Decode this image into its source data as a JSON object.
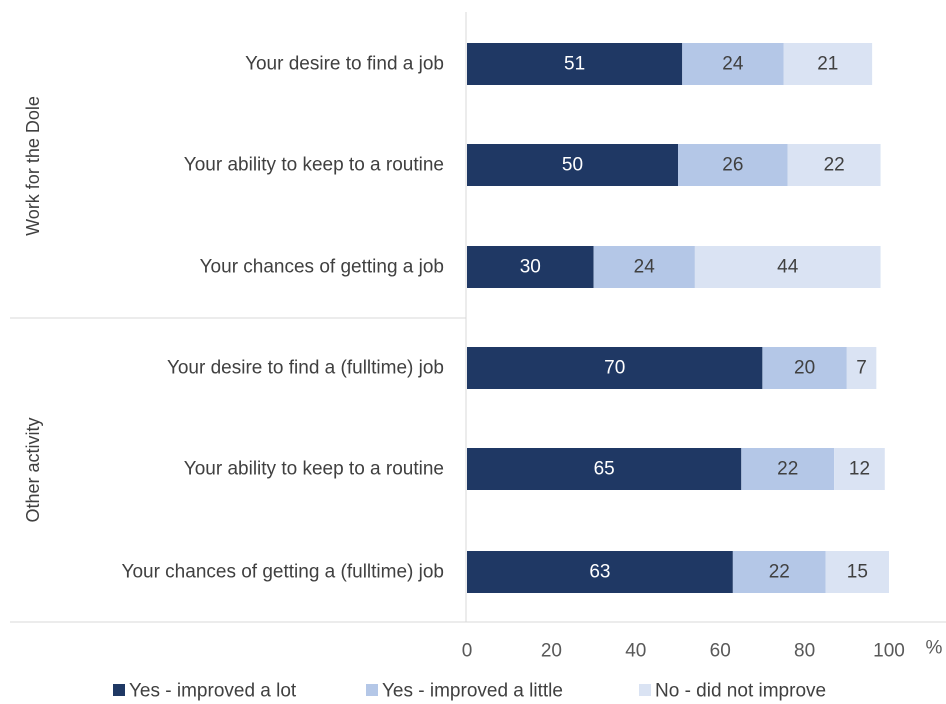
{
  "chart_data": {
    "type": "bar",
    "orientation": "horizontal",
    "stacked": true,
    "groups": [
      {
        "label": "Work for the Dole",
        "categories": [
          "Your desire to find a job",
          "Your ability to keep to a routine",
          "Your chances of getting a job"
        ]
      },
      {
        "label": "Other activity",
        "categories": [
          "Your desire to find a (fulltime) job",
          "Your ability to keep to a routine",
          "Your chances of getting a (fulltime) job"
        ]
      }
    ],
    "series": [
      {
        "name": "Yes - improved a lot",
        "color": "#1f3864",
        "label_color": "#ffffff",
        "values": [
          51,
          50,
          30,
          70,
          65,
          63
        ]
      },
      {
        "name": "Yes - improved a little",
        "color": "#b4c7e7",
        "label_color": "#404040",
        "values": [
          24,
          26,
          24,
          20,
          22,
          22
        ]
      },
      {
        "name": "No - did not improve",
        "color": "#dae3f3",
        "label_color": "#404040",
        "values": [
          21,
          22,
          44,
          7,
          12,
          15
        ]
      }
    ],
    "xlim": [
      0,
      100
    ],
    "xticks": [
      "0",
      "20",
      "40",
      "60",
      "80",
      "100"
    ],
    "xunit": "%",
    "grid": false,
    "legend_position": "bottom",
    "data_labels": true
  }
}
